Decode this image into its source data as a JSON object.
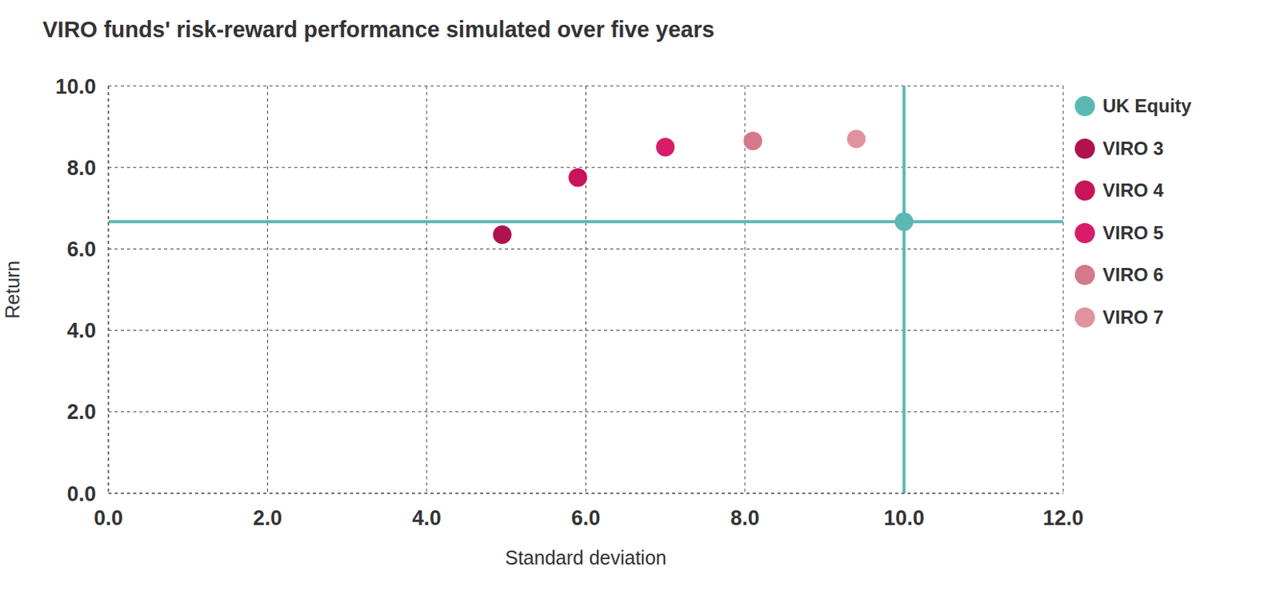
{
  "chart_data": {
    "type": "scatter",
    "title": "VIRO funds' risk-reward performance simulated over five years",
    "xlabel": "Standard deviation",
    "ylabel": "Return",
    "xlim": [
      0,
      12
    ],
    "ylim": [
      0,
      10
    ],
    "xticks": [
      {
        "value": 0,
        "label": "0.0"
      },
      {
        "value": 2,
        "label": "2.0"
      },
      {
        "value": 4,
        "label": "4.0"
      },
      {
        "value": 6,
        "label": "6.0"
      },
      {
        "value": 8,
        "label": "8.0"
      },
      {
        "value": 10,
        "label": "10.0"
      },
      {
        "value": 12,
        "label": "12.0"
      }
    ],
    "yticks": [
      {
        "value": 0,
        "label": "0.0"
      },
      {
        "value": 2,
        "label": "2.0"
      },
      {
        "value": 4,
        "label": "4.0"
      },
      {
        "value": 6,
        "label": "6.0"
      },
      {
        "value": 8,
        "label": "8.0"
      },
      {
        "value": 10,
        "label": "10.0"
      }
    ],
    "grid": true,
    "legend": "right",
    "marker": "circle",
    "series": [
      {
        "name": "UK Equity",
        "color": "#5bb8b4",
        "line_style": "crosshair",
        "x": [
          10.0
        ],
        "values": [
          6.67
        ]
      },
      {
        "name": "VIRO 3",
        "color": "#b0124e",
        "x": [
          4.95
        ],
        "values": [
          6.35
        ]
      },
      {
        "name": "VIRO 4",
        "color": "#c8145a",
        "x": [
          5.9
        ],
        "values": [
          7.75
        ]
      },
      {
        "name": "VIRO 5",
        "color": "#d81b6a",
        "x": [
          7.0
        ],
        "values": [
          8.5
        ]
      },
      {
        "name": "VIRO 6",
        "color": "#d4788c",
        "x": [
          8.1
        ],
        "values": [
          8.65
        ]
      },
      {
        "name": "VIRO 7",
        "color": "#e0939f",
        "x": [
          9.4
        ],
        "values": [
          8.7
        ]
      }
    ]
  }
}
